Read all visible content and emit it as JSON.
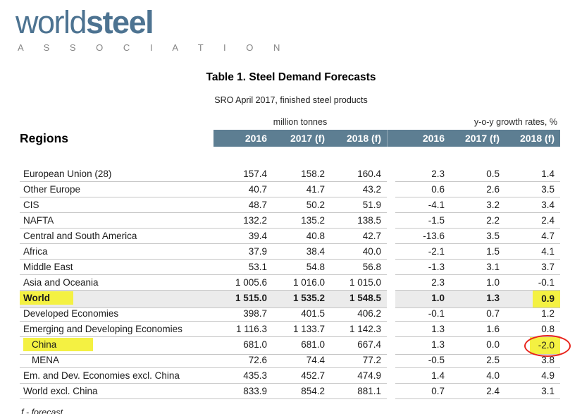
{
  "logo": {
    "world": "world",
    "steel": "steel",
    "association": "A S S O C I A T I O N"
  },
  "title": "Table 1. Steel Demand Forecasts",
  "subtitle": "SRO April 2017, finished steel products",
  "table": {
    "regions_label": "Regions",
    "group1_label": "million tonnes",
    "group2_label": "y-o-y growth rates, %",
    "col_headers": [
      "2016",
      "2017 (f)",
      "2018 (f)",
      "2016",
      "2017 (f)",
      "2018 (f)"
    ],
    "rows": [
      {
        "region": "European Union (28)",
        "values": [
          "157.4",
          "158.2",
          "160.4",
          "2.3",
          "0.5",
          "1.4"
        ]
      },
      {
        "region": "Other Europe",
        "values": [
          "40.7",
          "41.7",
          "43.2",
          "0.6",
          "2.6",
          "3.5"
        ]
      },
      {
        "region": "CIS",
        "values": [
          "48.7",
          "50.2",
          "51.9",
          "-4.1",
          "3.2",
          "3.4"
        ]
      },
      {
        "region": "NAFTA",
        "values": [
          "132.2",
          "135.2",
          "138.5",
          "-1.5",
          "2.2",
          "2.4"
        ]
      },
      {
        "region": "Central and South America",
        "values": [
          "39.4",
          "40.8",
          "42.7",
          "-13.6",
          "3.5",
          "4.7"
        ]
      },
      {
        "region": "Africa",
        "values": [
          "37.9",
          "38.4",
          "40.0",
          "-2.1",
          "1.5",
          "4.1"
        ]
      },
      {
        "region": "Middle East",
        "values": [
          "53.1",
          "54.8",
          "56.8",
          "-1.3",
          "3.1",
          "3.7"
        ]
      },
      {
        "region": "Asia and Oceania",
        "values": [
          "1 005.6",
          "1 016.0",
          "1 015.0",
          "2.3",
          "1.0",
          "-0.1"
        ]
      },
      {
        "region": "World",
        "values": [
          "1 515.0",
          "1 535.2",
          "1 548.5",
          "1.0",
          "1.3",
          "0.9"
        ]
      },
      {
        "region": "Developed Economies",
        "values": [
          "398.7",
          "401.5",
          "406.2",
          "-0.1",
          "0.7",
          "1.2"
        ]
      },
      {
        "region": "Emerging and Developing Economies",
        "values": [
          "1 116.3",
          "1 133.7",
          "1 142.3",
          "1.3",
          "1.6",
          "0.8"
        ]
      },
      {
        "region": "China",
        "values": [
          "681.0",
          "681.0",
          "667.4",
          "1.3",
          "0.0",
          "-2.0"
        ]
      },
      {
        "region": "MENA",
        "values": [
          "72.6",
          "74.4",
          "77.2",
          "-0.5",
          "2.5",
          "3.8"
        ]
      },
      {
        "region": "Em. and Dev. Economies excl. China",
        "values": [
          "435.3",
          "452.7",
          "474.9",
          "1.4",
          "4.0",
          "4.9"
        ]
      },
      {
        "region": "World excl. China",
        "values": [
          "833.9",
          "854.2",
          "881.1",
          "0.7",
          "2.4",
          "3.1"
        ]
      }
    ]
  },
  "footnote": "f - forecast",
  "colors": {
    "header_band": "#5d7e92",
    "highlight_yellow": "#f4f142",
    "world_row_bg": "#ebebeb",
    "annotation_red": "#e8251d",
    "logo_blue": "#4d7391",
    "association_gray": "#858585",
    "row_border": "#c6c6c6"
  }
}
